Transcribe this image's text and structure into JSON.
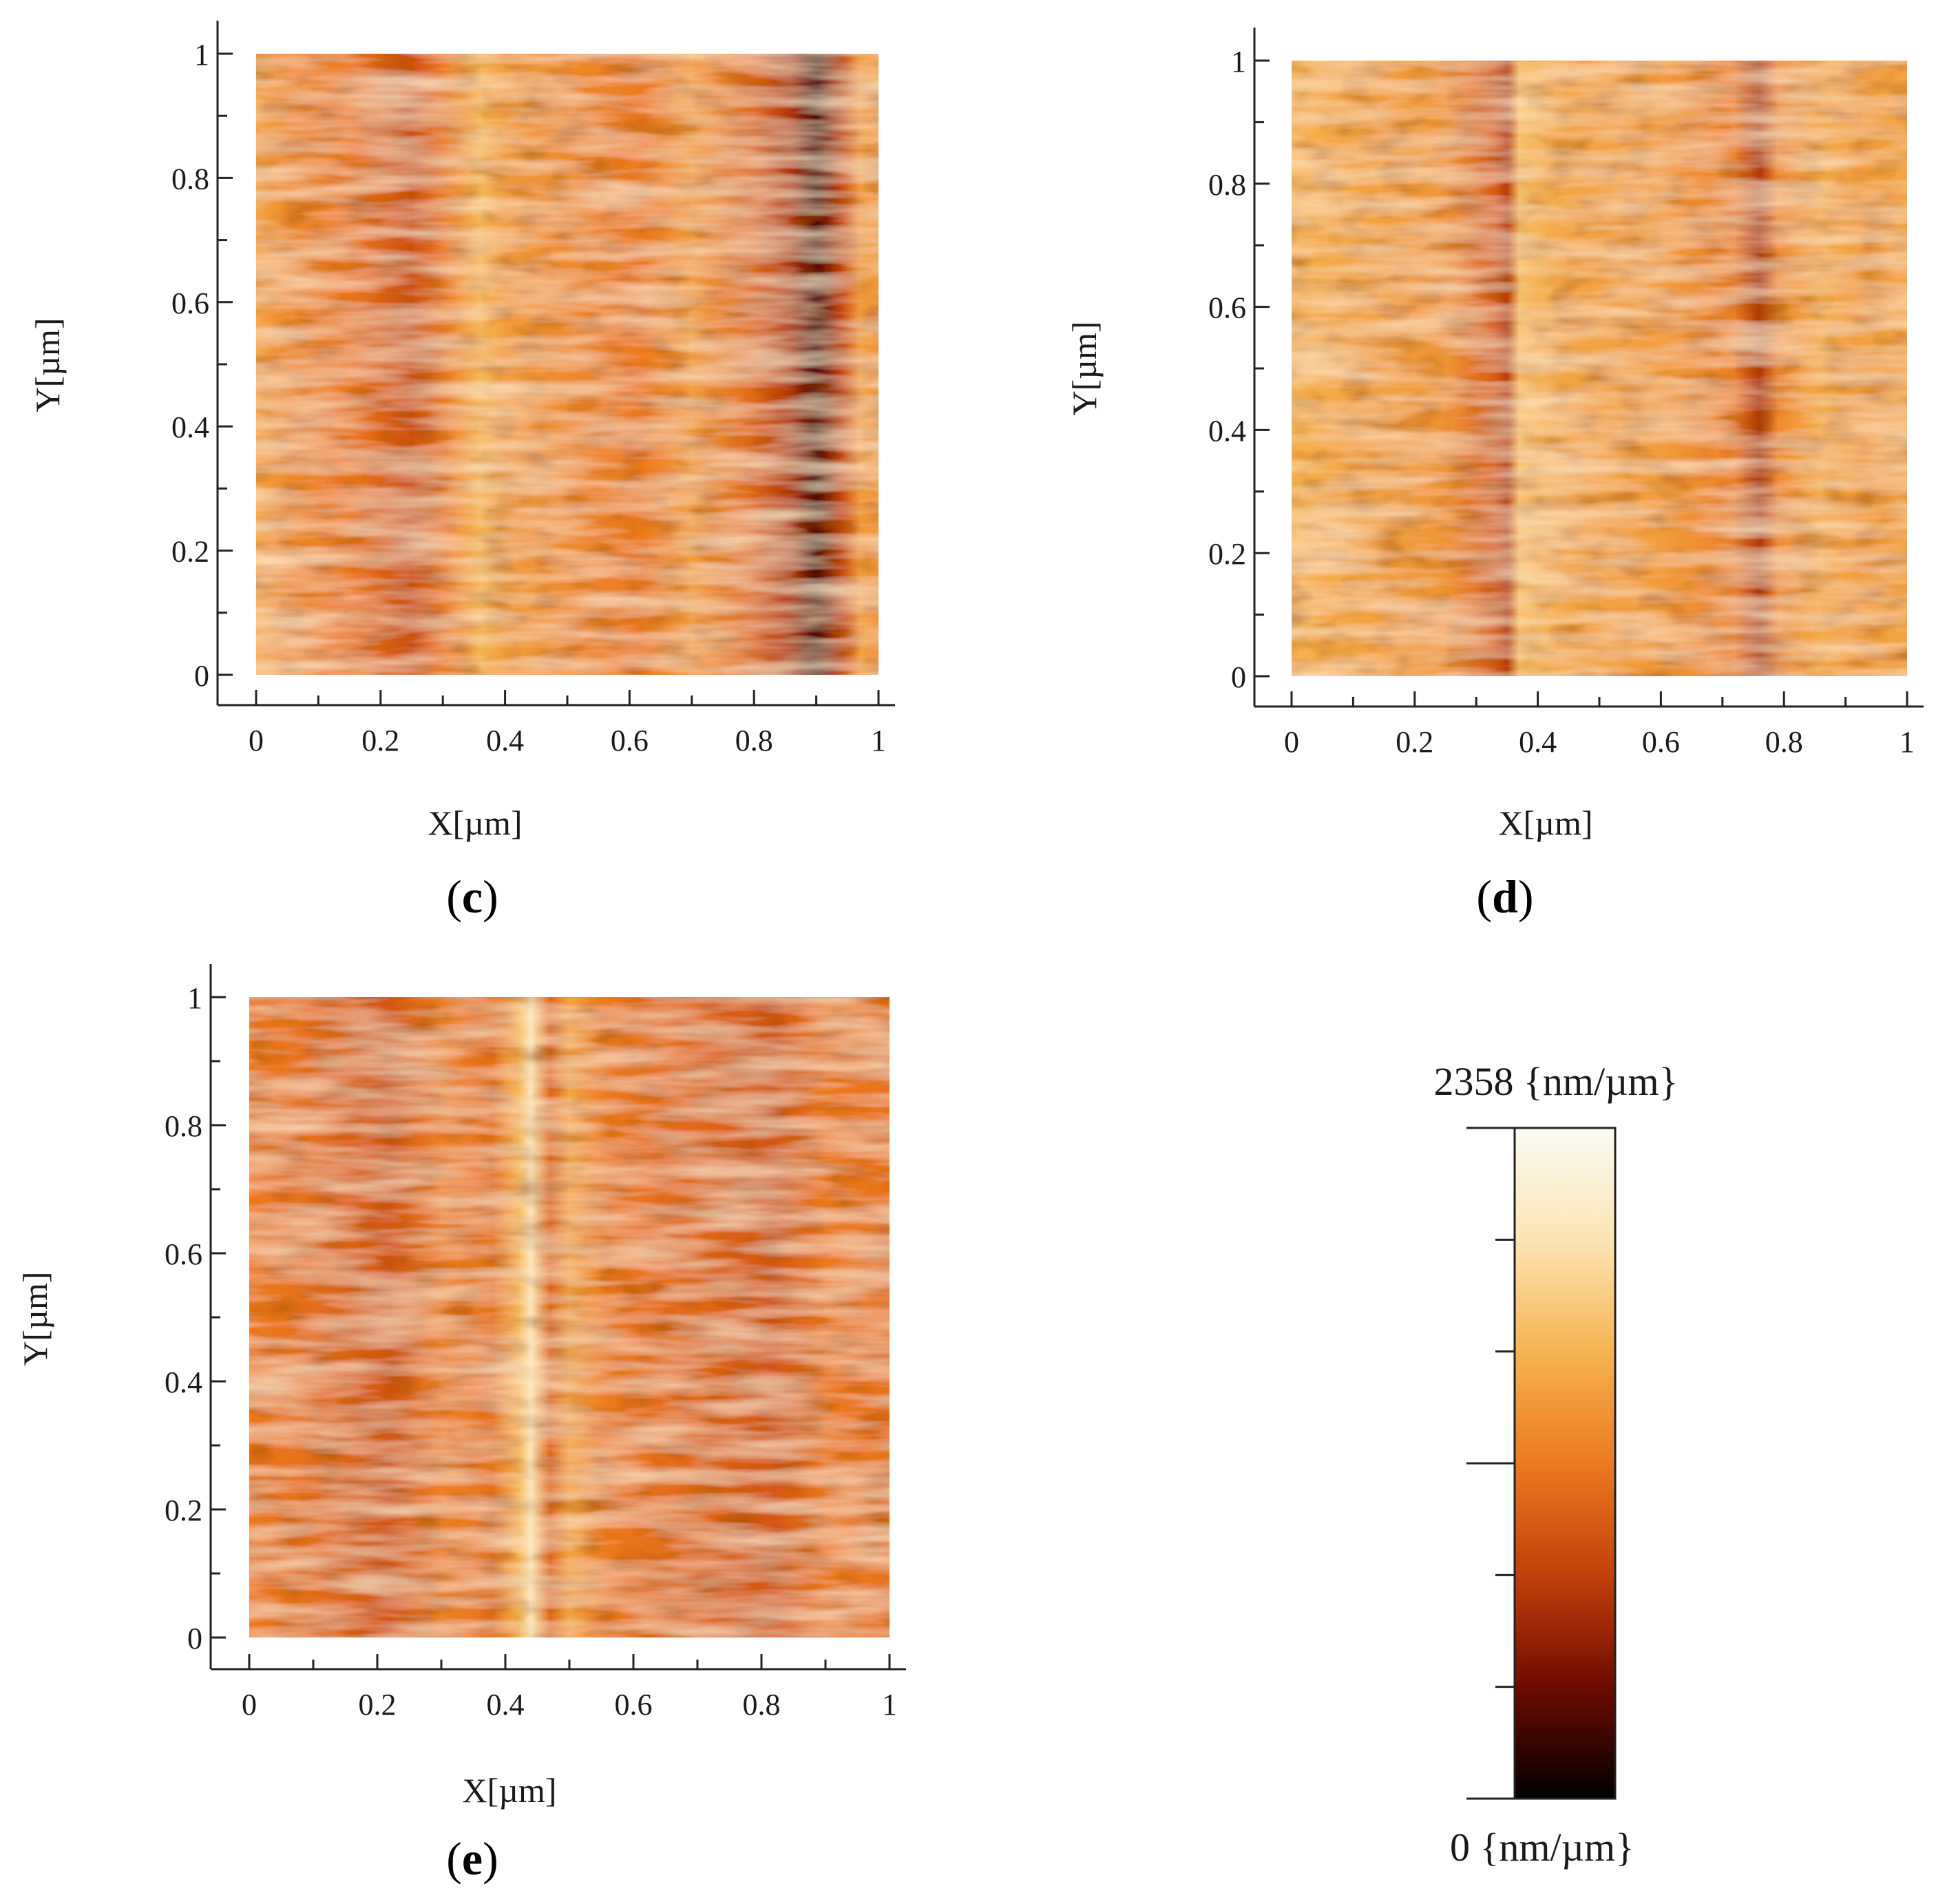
{
  "figure": {
    "colorbar": {
      "max_value": "2358",
      "min_value": "0",
      "unit": "{nm/µm}",
      "colors": [
        "#000000",
        "#6e0b00",
        "#c2400c",
        "#eb7a1f",
        "#f6b451",
        "#fbe5b4",
        "#fbfaf2"
      ]
    }
  },
  "chart_data": [
    {
      "type": "heatmap",
      "panel": "c",
      "panel_label": {
        "open": "(",
        "letter": "c",
        "close": ")"
      },
      "xlabel": "X[µm]",
      "ylabel": "Y[µm]",
      "xlim": [
        0,
        1
      ],
      "ylim": [
        0,
        1
      ],
      "x_ticks": [
        "0",
        "0.2",
        "0.4",
        "0.6",
        "0.8",
        "1"
      ],
      "y_ticks": [
        "0",
        "0.2",
        "0.4",
        "0.6",
        "0.8",
        "1"
      ],
      "bands": [
        [
          0.0,
          0.62
        ],
        [
          0.05,
          0.55
        ],
        [
          0.15,
          0.5
        ],
        [
          0.25,
          0.38
        ],
        [
          0.3,
          0.5
        ],
        [
          0.36,
          0.68
        ],
        [
          0.4,
          0.6
        ],
        [
          0.5,
          0.55
        ],
        [
          0.62,
          0.5
        ],
        [
          0.7,
          0.6
        ],
        [
          0.8,
          0.45
        ],
        [
          0.86,
          0.3
        ],
        [
          0.9,
          0.12
        ],
        [
          0.94,
          0.35
        ],
        [
          0.97,
          0.6
        ],
        [
          1.0,
          0.58
        ]
      ]
    },
    {
      "type": "heatmap",
      "panel": "d",
      "panel_label": {
        "open": "(",
        "letter": "d",
        "close": ")"
      },
      "xlabel": "X[µm]",
      "ylabel": "Y[µm]",
      "xlim": [
        0,
        1
      ],
      "ylim": [
        0,
        1
      ],
      "x_ticks": [
        "0",
        "0.2",
        "0.4",
        "0.6",
        "0.8",
        "1"
      ],
      "y_ticks": [
        "0",
        "0.2",
        "0.4",
        "0.6",
        "0.8",
        "1"
      ],
      "bands": [
        [
          0.0,
          0.66
        ],
        [
          0.1,
          0.62
        ],
        [
          0.25,
          0.58
        ],
        [
          0.33,
          0.42
        ],
        [
          0.35,
          0.32
        ],
        [
          0.37,
          0.7
        ],
        [
          0.45,
          0.62
        ],
        [
          0.6,
          0.6
        ],
        [
          0.72,
          0.52
        ],
        [
          0.76,
          0.3
        ],
        [
          0.79,
          0.55
        ],
        [
          0.86,
          0.64
        ],
        [
          0.92,
          0.6
        ],
        [
          1.0,
          0.62
        ]
      ]
    },
    {
      "type": "heatmap",
      "panel": "e",
      "panel_label": {
        "open": "(",
        "letter": "e",
        "close": ")"
      },
      "xlabel": "X[µm]",
      "ylabel": "Y[µm]",
      "xlim": [
        0,
        1
      ],
      "ylim": [
        0,
        1
      ],
      "x_ticks": [
        "0",
        "0.2",
        "0.4",
        "0.6",
        "0.8",
        "1"
      ],
      "y_ticks": [
        "0",
        "0.2",
        "0.4",
        "0.6",
        "0.8",
        "1"
      ],
      "bands": [
        [
          0.0,
          0.5
        ],
        [
          0.1,
          0.47
        ],
        [
          0.22,
          0.4
        ],
        [
          0.3,
          0.52
        ],
        [
          0.38,
          0.48
        ],
        [
          0.42,
          0.66
        ],
        [
          0.44,
          0.85
        ],
        [
          0.47,
          0.45
        ],
        [
          0.5,
          0.62
        ],
        [
          0.56,
          0.5
        ],
        [
          0.7,
          0.45
        ],
        [
          0.82,
          0.4
        ],
        [
          0.9,
          0.5
        ],
        [
          1.0,
          0.48
        ]
      ]
    }
  ]
}
